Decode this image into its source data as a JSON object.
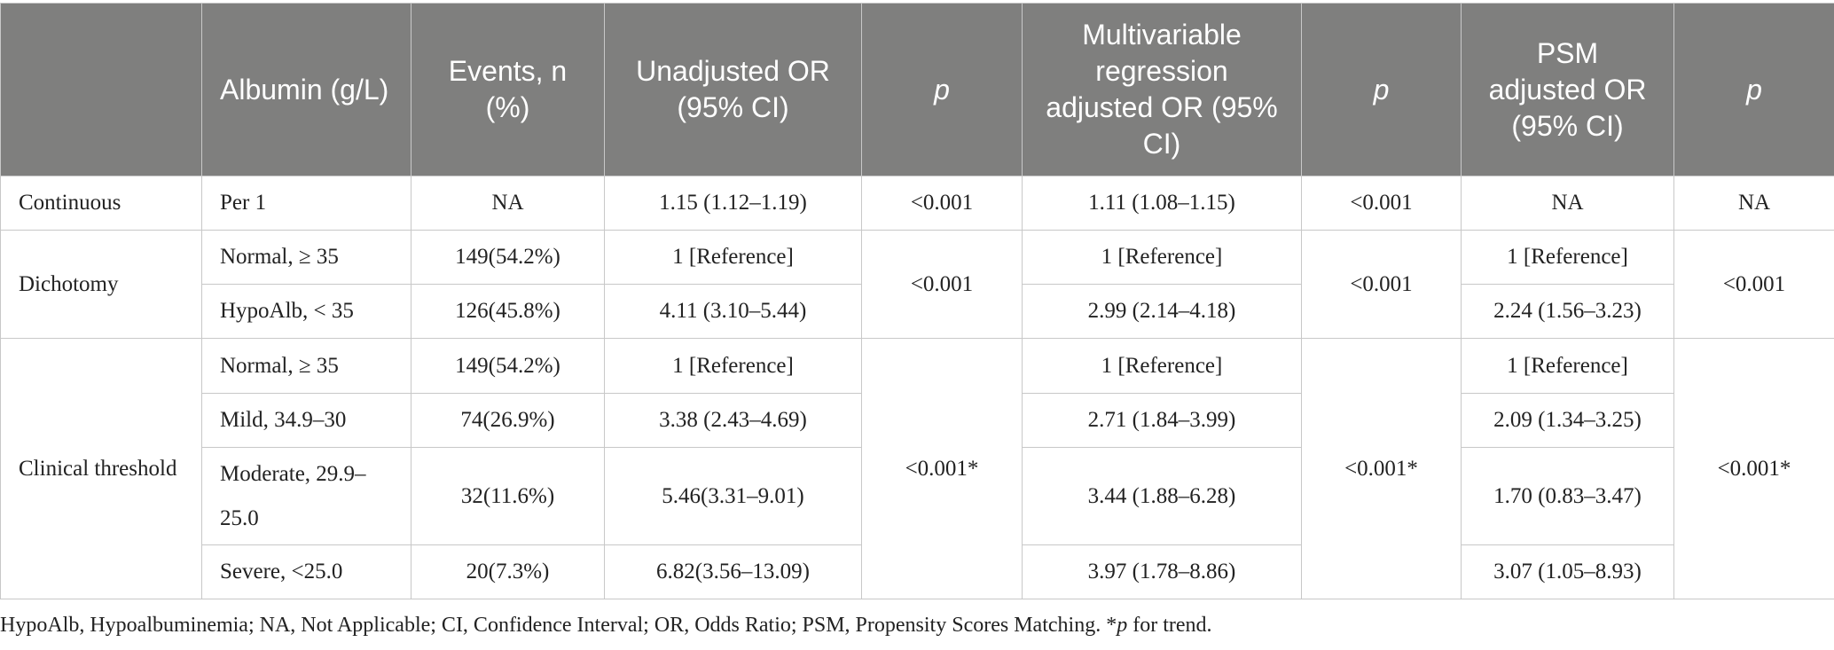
{
  "table": {
    "headers": [
      {
        "text": "",
        "italic": false
      },
      {
        "text": "Albumin (g/L)",
        "italic": false
      },
      {
        "text": "Events, n (%)",
        "italic": false
      },
      {
        "text": "Unadjusted OR (95% CI)",
        "italic": false
      },
      {
        "text": "p",
        "italic": true
      },
      {
        "text": "Multivariable regression adjusted OR (95% CI)",
        "italic": false
      },
      {
        "text": "p",
        "italic": true
      },
      {
        "text": "PSM adjusted OR (95% CI)",
        "italic": false
      },
      {
        "text": "p",
        "italic": true
      }
    ],
    "groups": {
      "continuous": {
        "category": "Continuous",
        "p_unadj": "<0.001",
        "p_multi": "<0.001",
        "p_psm": "NA",
        "rows": [
          {
            "albumin": "Per 1",
            "events": "NA",
            "unadjusted": "1.15 (1.12–1.19)",
            "multivariable": "1.11 (1.08–1.15)",
            "psm": "NA"
          }
        ]
      },
      "dichotomy": {
        "category": "Dichotomy",
        "p_unadj": "<0.001",
        "p_multi": "<0.001",
        "p_psm": "<0.001",
        "rows": [
          {
            "albumin": "Normal, ≥ 35",
            "events": "149(54.2%)",
            "unadjusted": "1 [Reference]",
            "multivariable": "1 [Reference]",
            "psm": "1 [Reference]"
          },
          {
            "albumin": "HypoAlb, < 35",
            "events": "126(45.8%)",
            "unadjusted": "4.11 (3.10–5.44)",
            "multivariable": "2.99 (2.14–4.18)",
            "psm": "2.24 (1.56–3.23)"
          }
        ]
      },
      "clinical": {
        "category": "Clinical threshold",
        "p_unadj": "<0.001*",
        "p_multi": "<0.001*",
        "p_psm": "<0.001*",
        "rows": [
          {
            "albumin": "Normal, ≥ 35",
            "events": "149(54.2%)",
            "unadjusted": "1 [Reference]",
            "multivariable": "1 [Reference]",
            "psm": "1 [Reference]"
          },
          {
            "albumin": "Mild, 34.9–30",
            "events": "74(26.9%)",
            "unadjusted": "3.38 (2.43–4.69)",
            "multivariable": "2.71 (1.84–3.99)",
            "psm": "2.09 (1.34–3.25)"
          },
          {
            "albumin": "Moderate, 29.9–25.0",
            "events": "32(11.6%)",
            "unadjusted": "5.46(3.31–9.01)",
            "multivariable": "3.44 (1.88–6.28)",
            "psm": "1.70 (0.83–3.47)"
          },
          {
            "albumin": "Severe, <25.0",
            "events": "20(7.3%)",
            "unadjusted": "6.82(3.56–13.09)",
            "multivariable": "3.97 (1.78–8.86)",
            "psm": "3.07 (1.05–8.93)"
          }
        ]
      }
    }
  },
  "footnote": {
    "text": "HypoAlb, Hypoalbuminemia; NA, Not Applicable; CI, Confidence Interval; OR, Odds Ratio; PSM, Propensity Scores Matching. *",
    "italic_p": "p",
    "tail": " for trend."
  }
}
